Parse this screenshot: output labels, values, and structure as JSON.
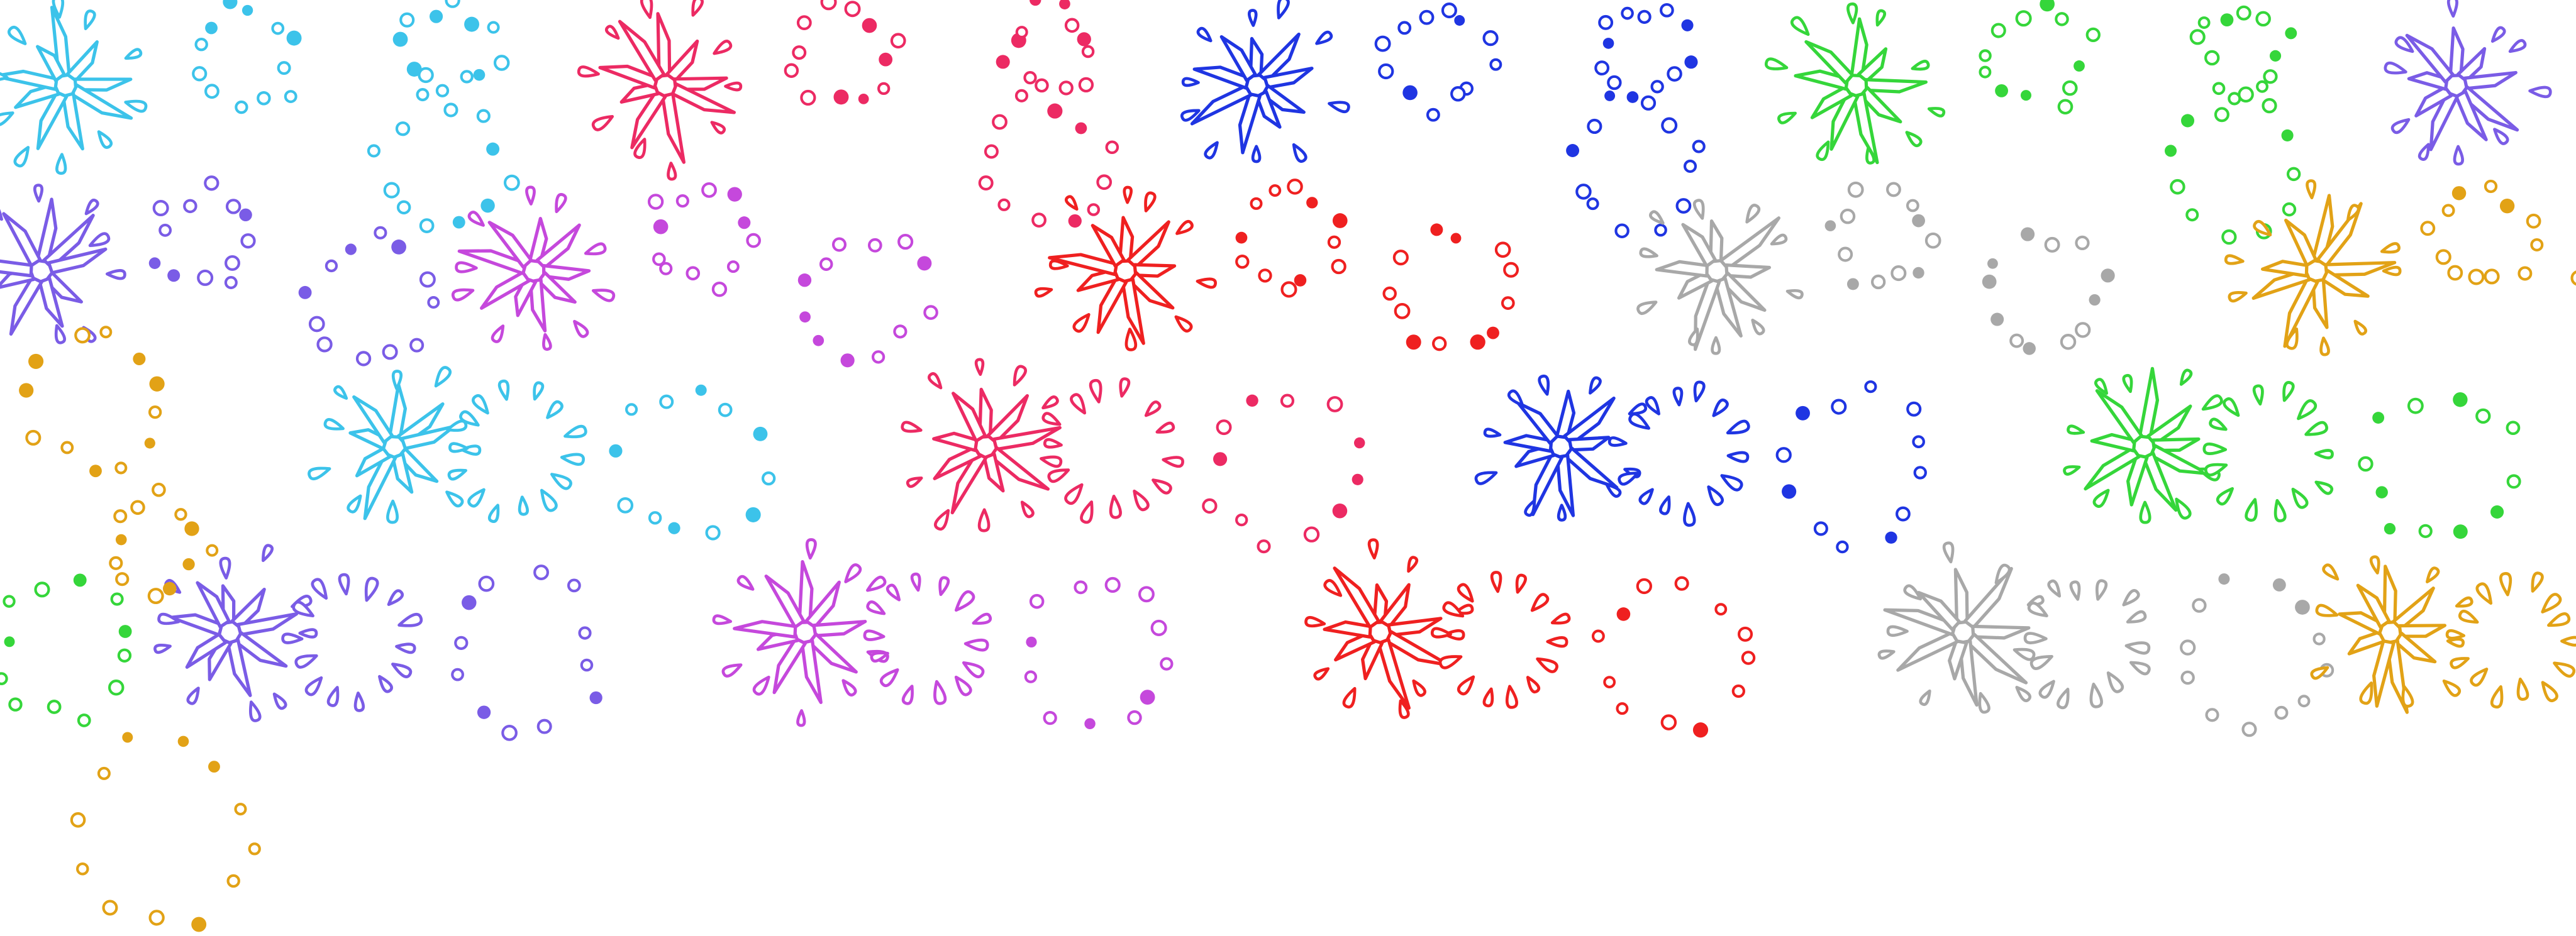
{
  "sheet": {
    "name": "fireworks-sprite-sheet",
    "background": "#ffffff",
    "frame_kinds": [
      "burst",
      "ring",
      "scatter"
    ],
    "palette": {
      "cyan": "#3cc3ea",
      "crimson": "#ec2a63",
      "blue": "#1f35e2",
      "green": "#35d63a",
      "violet": "#7a5ce6",
      "magenta": "#c548dc",
      "red": "#ef2020",
      "silver": "#a8a8a8",
      "amber": "#e2a216"
    },
    "rows": [
      {
        "kind": "burst",
        "colors": [
          "cyan",
          "crimson",
          "blue",
          "green",
          "violet"
        ]
      },
      {
        "kind": "scatter",
        "colors": [
          "violet",
          "magenta",
          "red",
          "silver",
          "amber"
        ]
      },
      {
        "kind": "ring",
        "colors": [
          "cyan",
          "crimson",
          "blue",
          "green"
        ]
      },
      {
        "kind": "ring",
        "colors": [
          "violet",
          "magenta",
          "red",
          "silver",
          "amber"
        ]
      }
    ]
  }
}
